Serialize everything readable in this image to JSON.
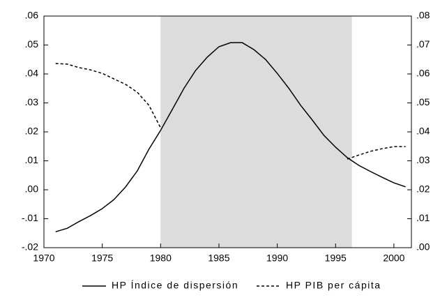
{
  "chart_data": {
    "type": "line",
    "x": [
      1971,
      1972,
      1973,
      1974,
      1975,
      1976,
      1977,
      1978,
      1979,
      1980,
      1981,
      1982,
      1983,
      1984,
      1985,
      1986,
      1987,
      1988,
      1989,
      1990,
      1991,
      1992,
      1993,
      1994,
      1995,
      1996,
      1997,
      1998,
      1999,
      2000,
      2001
    ],
    "series": [
      {
        "name": "HP Índice de dispersión",
        "color": "#000000",
        "style": "solid",
        "axis": "y",
        "values": [
          -0.0145,
          -0.0133,
          -0.011,
          -0.0089,
          -0.0065,
          -0.0034,
          0.001,
          0.0065,
          0.014,
          0.0205,
          0.0277,
          0.035,
          0.0412,
          0.0458,
          0.0494,
          0.0508,
          0.0508,
          0.0484,
          0.045,
          0.0402,
          0.035,
          0.0292,
          0.0241,
          0.0188,
          0.0147,
          0.0111,
          0.0084,
          0.0063,
          0.0043,
          0.0024,
          0.001
        ]
      },
      {
        "name": "HP PIB per cápita",
        "color": "#000000",
        "style": "dashed",
        "axis": "y2",
        "values": [
          0.0636,
          0.0634,
          0.0622,
          0.0614,
          0.0602,
          0.0583,
          0.0564,
          0.0537,
          0.0492,
          0.0414,
          null,
          null,
          null,
          null,
          null,
          null,
          null,
          null,
          null,
          null,
          null,
          null,
          null,
          null,
          null,
          0.0306,
          0.032,
          0.0333,
          0.0342,
          0.0349,
          0.0349
        ]
      }
    ],
    "shaded_region": [
      1980,
      1996.4
    ],
    "shade_color": "#dcdcdc",
    "xlim": [
      1970,
      2001.5
    ],
    "xticks": [
      1970,
      1975,
      1980,
      1985,
      1990,
      1995,
      2000
    ],
    "ylim": [
      -0.02,
      0.06
    ],
    "yticks": [
      {
        "value": -0.02,
        "label": "-.02"
      },
      {
        "value": -0.01,
        "label": "-.01"
      },
      {
        "value": 0,
        "label": ".00"
      },
      {
        "value": 0.01,
        "label": ".01"
      },
      {
        "value": 0.02,
        "label": ".02"
      },
      {
        "value": 0.03,
        "label": ".03"
      },
      {
        "value": 0.04,
        "label": ".04"
      },
      {
        "value": 0.05,
        "label": ".05"
      },
      {
        "value": 0.06,
        "label": ".06"
      }
    ],
    "y2lim": [
      0,
      0.08
    ],
    "y2ticks": [
      {
        "value": 0,
        "label": ".00"
      },
      {
        "value": 0.01,
        "label": ".01"
      },
      {
        "value": 0.02,
        "label": ".02"
      },
      {
        "value": 0.03,
        "label": ".03"
      },
      {
        "value": 0.04,
        "label": ".04"
      },
      {
        "value": 0.05,
        "label": ".05"
      },
      {
        "value": 0.06,
        "label": ".06"
      },
      {
        "value": 0.07,
        "label": ".07"
      },
      {
        "value": 0.08,
        "label": ".08"
      }
    ],
    "legend": "bottom"
  }
}
